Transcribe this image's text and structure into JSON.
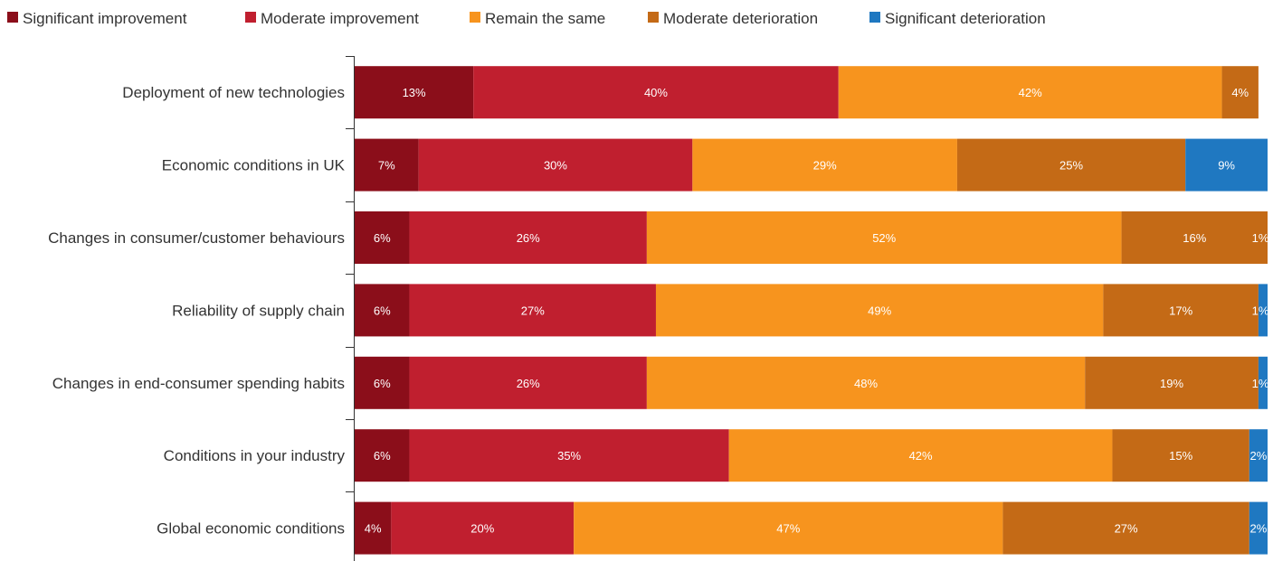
{
  "chart_data": {
    "type": "bar",
    "orientation": "horizontal",
    "stacked": true,
    "legend_position": "top-left",
    "grid": false,
    "xlim": [
      0,
      100
    ],
    "categories": [
      "Deployment of new technologies",
      "Economic conditions in UK",
      "Changes in consumer/customer behaviours",
      "Reliability of supply chain",
      "Changes in end-consumer spending habits",
      "Conditions in your industry",
      "Global economic conditions"
    ],
    "series": [
      {
        "name": "Significant improvement",
        "color": "#8b0e1a",
        "values": [
          13,
          7,
          6,
          6,
          6,
          6,
          4
        ]
      },
      {
        "name": "Moderate improvement",
        "color": "#c01f2f",
        "values": [
          40,
          30,
          26,
          27,
          26,
          35,
          20
        ]
      },
      {
        "name": "Remain the same",
        "color": "#f7941e",
        "values": [
          42,
          29,
          52,
          49,
          48,
          42,
          47
        ]
      },
      {
        "name": "Moderate deterioration",
        "color": "#c46a16",
        "values": [
          4,
          25,
          16,
          17,
          19,
          15,
          27
        ]
      },
      {
        "name": "Significant deterioration",
        "color": "#1f78c1",
        "values": [
          0,
          9,
          1,
          1,
          1,
          2,
          2
        ]
      }
    ],
    "data_labels": [
      [
        "13%",
        "40%",
        "42%",
        "4%",
        ""
      ],
      [
        "7%",
        "30%",
        "29%",
        "25%",
        "9%"
      ],
      [
        "6%",
        "26%",
        "52%",
        "16%",
        "1%"
      ],
      [
        "6%",
        "27%",
        "49%",
        "17%",
        "1%"
      ],
      [
        "6%",
        "26%",
        "48%",
        "19%",
        "1%"
      ],
      [
        "6%",
        "35%",
        "42%",
        "15%",
        "2%"
      ],
      [
        "4%",
        "20%",
        "47%",
        "27%",
        "2%"
      ]
    ]
  }
}
